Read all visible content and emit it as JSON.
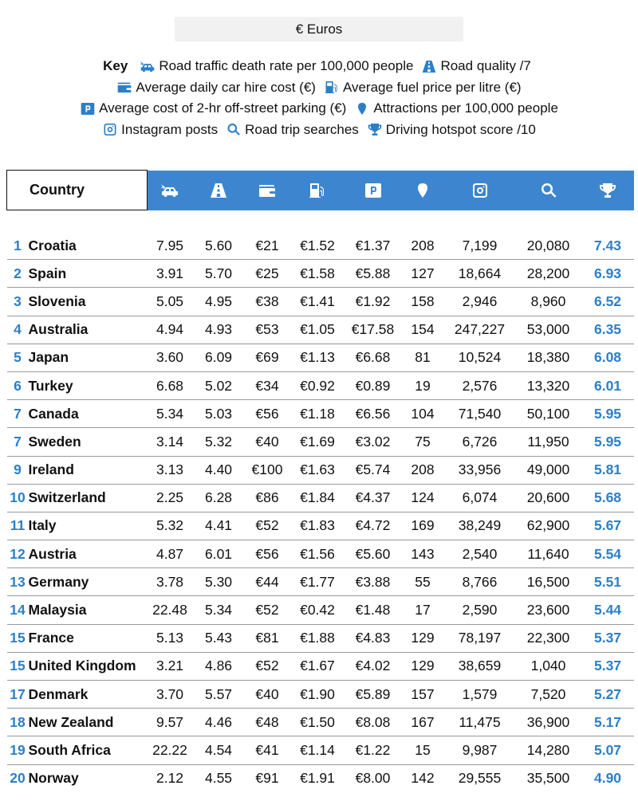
{
  "currency": {
    "label": "€ Euros"
  },
  "key": {
    "title": "Key",
    "items": [
      {
        "icon": "car-crash-icon",
        "label": "Road traffic death rate per 100,000 people"
      },
      {
        "icon": "road-icon",
        "label": "Road quality /7"
      },
      {
        "icon": "wallet-icon",
        "label": "Average daily car hire cost (€)"
      },
      {
        "icon": "fuel-pump-icon",
        "label": "Average fuel price per litre (€)"
      },
      {
        "icon": "parking-icon",
        "label": "Average cost of 2-hr off-street parking (€)"
      },
      {
        "icon": "map-pin-icon",
        "label": "Attractions per 100,000 people"
      },
      {
        "icon": "instagram-icon",
        "label": "Instagram posts"
      },
      {
        "icon": "search-icon",
        "label": "Road trip searches"
      },
      {
        "icon": "trophy-icon",
        "label": "Driving hotspot score /10"
      }
    ]
  },
  "table": {
    "country_header": "Country",
    "rows": [
      {
        "rank": "1",
        "country": "Croatia",
        "death": "7.95",
        "quality": "5.60",
        "hire": "€21",
        "fuel": "€1.52",
        "parking": "€1.37",
        "attractions": "208",
        "instagram": "7,199",
        "searches": "20,080",
        "score": "7.43"
      },
      {
        "rank": "2",
        "country": "Spain",
        "death": "3.91",
        "quality": "5.70",
        "hire": "€25",
        "fuel": "€1.58",
        "parking": "€5.88",
        "attractions": "127",
        "instagram": "18,664",
        "searches": "28,200",
        "score": "6.93"
      },
      {
        "rank": "3",
        "country": "Slovenia",
        "death": "5.05",
        "quality": "4.95",
        "hire": "€38",
        "fuel": "€1.41",
        "parking": "€1.92",
        "attractions": "158",
        "instagram": "2,946",
        "searches": "8,960",
        "score": "6.52"
      },
      {
        "rank": "4",
        "country": "Australia",
        "death": "4.94",
        "quality": "4.93",
        "hire": "€53",
        "fuel": "€1.05",
        "parking": "€17.58",
        "attractions": "154",
        "instagram": "247,227",
        "searches": "53,000",
        "score": "6.35"
      },
      {
        "rank": "5",
        "country": "Japan",
        "death": "3.60",
        "quality": "6.09",
        "hire": "€69",
        "fuel": "€1.13",
        "parking": "€6.68",
        "attractions": "81",
        "instagram": "10,524",
        "searches": "18,380",
        "score": "6.08"
      },
      {
        "rank": "6",
        "country": "Turkey",
        "death": "6.68",
        "quality": "5.02",
        "hire": "€34",
        "fuel": "€0.92",
        "parking": "€0.89",
        "attractions": "19",
        "instagram": "2,576",
        "searches": "13,320",
        "score": "6.01"
      },
      {
        "rank": "7",
        "country": "Canada",
        "death": "5.34",
        "quality": "5.03",
        "hire": "€56",
        "fuel": "€1.18",
        "parking": "€6.56",
        "attractions": "104",
        "instagram": "71,540",
        "searches": "50,100",
        "score": "5.95"
      },
      {
        "rank": "7",
        "country": "Sweden",
        "death": "3.14",
        "quality": "5.32",
        "hire": "€40",
        "fuel": "€1.69",
        "parking": "€3.02",
        "attractions": "75",
        "instagram": "6,726",
        "searches": "11,950",
        "score": "5.95"
      },
      {
        "rank": "9",
        "country": "Ireland",
        "death": "3.13",
        "quality": "4.40",
        "hire": "€100",
        "fuel": "€1.63",
        "parking": "€5.74",
        "attractions": "208",
        "instagram": "33,956",
        "searches": "49,000",
        "score": "5.81"
      },
      {
        "rank": "10",
        "country": "Switzerland",
        "death": "2.25",
        "quality": "6.28",
        "hire": "€86",
        "fuel": "€1.84",
        "parking": "€4.37",
        "attractions": "124",
        "instagram": "6,074",
        "searches": "20,600",
        "score": "5.68"
      },
      {
        "rank": "11",
        "country": "Italy",
        "death": "5.32",
        "quality": "4.41",
        "hire": "€52",
        "fuel": "€1.83",
        "parking": "€4.72",
        "attractions": "169",
        "instagram": "38,249",
        "searches": "62,900",
        "score": "5.67"
      },
      {
        "rank": "12",
        "country": "Austria",
        "death": "4.87",
        "quality": "6.01",
        "hire": "€56",
        "fuel": "€1.56",
        "parking": "€5.60",
        "attractions": "143",
        "instagram": "2,540",
        "searches": "11,640",
        "score": "5.54"
      },
      {
        "rank": "13",
        "country": "Germany",
        "death": "3.78",
        "quality": "5.30",
        "hire": "€44",
        "fuel": "€1.77",
        "parking": "€3.88",
        "attractions": "55",
        "instagram": "8,766",
        "searches": "16,500",
        "score": "5.51"
      },
      {
        "rank": "14",
        "country": "Malaysia",
        "death": "22.48",
        "quality": "5.34",
        "hire": "€52",
        "fuel": "€0.42",
        "parking": "€1.48",
        "attractions": "17",
        "instagram": "2,590",
        "searches": "23,600",
        "score": "5.44"
      },
      {
        "rank": "15",
        "country": "France",
        "death": "5.13",
        "quality": "5.43",
        "hire": "€81",
        "fuel": "€1.88",
        "parking": "€4.83",
        "attractions": "129",
        "instagram": "78,197",
        "searches": "22,300",
        "score": "5.37"
      },
      {
        "rank": "15",
        "country": "United Kingdom",
        "death": "3.21",
        "quality": "4.86",
        "hire": "€52",
        "fuel": "€1.67",
        "parking": "€4.02",
        "attractions": "129",
        "instagram": "38,659",
        "searches": "1,040",
        "score": "5.37"
      },
      {
        "rank": "17",
        "country": "Denmark",
        "death": "3.70",
        "quality": "5.57",
        "hire": "€40",
        "fuel": "€1.90",
        "parking": "€5.89",
        "attractions": "157",
        "instagram": "1,579",
        "searches": "7,520",
        "score": "5.27"
      },
      {
        "rank": "18",
        "country": "New Zealand",
        "death": "9.57",
        "quality": "4.46",
        "hire": "€48",
        "fuel": "€1.50",
        "parking": "€8.08",
        "attractions": "167",
        "instagram": "11,475",
        "searches": "36,900",
        "score": "5.17"
      },
      {
        "rank": "19",
        "country": "South Africa",
        "death": "22.22",
        "quality": "4.54",
        "hire": "€41",
        "fuel": "€1.14",
        "parking": "€1.22",
        "attractions": "15",
        "instagram": "9,987",
        "searches": "14,280",
        "score": "5.07"
      },
      {
        "rank": "20",
        "country": "Norway",
        "death": "2.12",
        "quality": "4.55",
        "hire": "€91",
        "fuel": "€1.91",
        "parking": "€8.00",
        "attractions": "142",
        "instagram": "29,555",
        "searches": "35,500",
        "score": "4.90"
      }
    ]
  },
  "colors": {
    "accent": "#3d86cf",
    "rank_text": "#2b7fc9"
  }
}
